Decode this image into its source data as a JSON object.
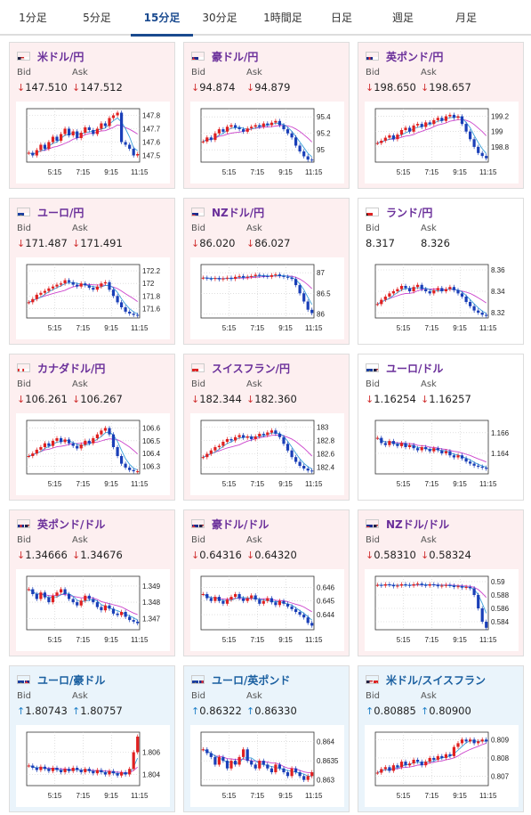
{
  "tabs": [
    {
      "label": "1分足",
      "active": false
    },
    {
      "label": "5分足",
      "active": false
    },
    {
      "label": "15分足",
      "active": true
    },
    {
      "label": "30分足",
      "active": false
    },
    {
      "label": "1時間足",
      "active": false
    },
    {
      "label": "日足",
      "active": false
    },
    {
      "label": "週足",
      "active": false
    },
    {
      "label": "月足",
      "active": false
    }
  ],
  "labels": {
    "bid": "Bid",
    "ask": "Ask"
  },
  "colors": {
    "up": "#1f7fc7",
    "down": "#d03030",
    "candle_up": "#e02020",
    "candle_down": "#1a3fb8",
    "ma_long": "#cc44cc",
    "ma_short": "#3aa0d8"
  },
  "time_labels": [
    "5:15",
    "7:15",
    "9:15",
    "11:15"
  ],
  "pairs": [
    {
      "name": "米ドル/円",
      "flag": "us-jp-flag",
      "bid": "147.510",
      "ask": "147.512",
      "dir": "down",
      "ticks": [
        "147.8",
        "147.7",
        "147.6",
        "147.5"
      ],
      "ylim": [
        147.45,
        147.85
      ],
      "closes": [
        147.52,
        147.5,
        147.54,
        147.58,
        147.55,
        147.6,
        147.64,
        147.61,
        147.66,
        147.7,
        147.65,
        147.68,
        147.63,
        147.67,
        147.71,
        147.69,
        147.66,
        147.7,
        147.74,
        147.72,
        147.78,
        147.8,
        147.82,
        147.6,
        147.58,
        147.55,
        147.5,
        147.51
      ]
    },
    {
      "name": "豪ドル/円",
      "flag": "au-jp-flag",
      "bid": "94.874",
      "ask": "94.879",
      "dir": "down",
      "ticks": [
        "95.4",
        "95.2",
        "95"
      ],
      "ylim": [
        94.85,
        95.5
      ],
      "closes": [
        95.1,
        95.15,
        95.12,
        95.2,
        95.25,
        95.22,
        95.28,
        95.3,
        95.27,
        95.25,
        95.22,
        95.26,
        95.28,
        95.3,
        95.28,
        95.32,
        95.3,
        95.33,
        95.35,
        95.3,
        95.25,
        95.2,
        95.15,
        95.05,
        94.98,
        94.92,
        94.88,
        94.87
      ]
    },
    {
      "name": "英ポンド/円",
      "flag": "gb-jp-flag",
      "bid": "198.650",
      "ask": "198.657",
      "dir": "down",
      "ticks": [
        "199.2",
        "199",
        "198.8"
      ],
      "ylim": [
        198.6,
        199.3
      ],
      "closes": [
        198.85,
        198.88,
        198.92,
        198.95,
        198.9,
        198.96,
        199.02,
        199.05,
        199.0,
        199.08,
        199.1,
        199.06,
        199.12,
        199.1,
        199.15,
        199.18,
        199.14,
        199.2,
        199.22,
        199.18,
        199.2,
        199.1,
        199.0,
        198.9,
        198.8,
        198.72,
        198.68,
        198.65
      ]
    },
    {
      "name": "ユーロ/円",
      "flag": "eu-jp-flag",
      "bid": "171.487",
      "ask": "171.491",
      "dir": "down",
      "ticks": [
        "172.2",
        "172",
        "171.8",
        "171.6"
      ],
      "ylim": [
        171.45,
        172.3
      ],
      "closes": [
        171.7,
        171.75,
        171.82,
        171.85,
        171.88,
        171.92,
        171.95,
        171.98,
        172.0,
        172.05,
        172.02,
        171.98,
        171.95,
        172.0,
        171.97,
        171.93,
        171.9,
        171.95,
        172.0,
        172.02,
        171.9,
        171.8,
        171.7,
        171.62,
        171.55,
        171.52,
        171.5,
        171.49
      ]
    },
    {
      "name": "NZドル/円",
      "flag": "nz-jp-flag",
      "bid": "86.020",
      "ask": "86.027",
      "dir": "down",
      "ticks": [
        "87",
        "86.5",
        "86"
      ],
      "ylim": [
        85.9,
        87.2
      ],
      "closes": [
        86.88,
        86.86,
        86.85,
        86.87,
        86.84,
        86.86,
        86.88,
        86.85,
        86.9,
        86.92,
        86.88,
        86.9,
        86.92,
        86.95,
        86.93,
        86.92,
        86.9,
        86.94,
        86.96,
        86.92,
        86.9,
        86.88,
        86.85,
        86.7,
        86.5,
        86.3,
        86.1,
        86.02
      ]
    },
    {
      "name": "ランド/円",
      "flag": "za-jp-flag",
      "bid": "8.317",
      "ask": "8.326",
      "dir": "none",
      "ticks": [
        "8.36",
        "8.34",
        "8.32"
      ],
      "ylim": [
        8.315,
        8.365
      ],
      "closes": [
        8.328,
        8.332,
        8.335,
        8.338,
        8.34,
        8.342,
        8.345,
        8.343,
        8.34,
        8.344,
        8.346,
        8.342,
        8.34,
        8.338,
        8.341,
        8.343,
        8.34,
        8.342,
        8.344,
        8.341,
        8.338,
        8.335,
        8.33,
        8.326,
        8.322,
        8.32,
        8.318,
        8.317
      ]
    },
    {
      "name": "カナダドル/円",
      "flag": "ca-jp-flag",
      "bid": "106.261",
      "ask": "106.267",
      "dir": "down",
      "ticks": [
        "106.6",
        "106.5",
        "106.4",
        "106.3"
      ],
      "ylim": [
        106.24,
        106.66
      ],
      "closes": [
        106.38,
        106.4,
        106.43,
        106.45,
        106.48,
        106.46,
        106.5,
        106.52,
        106.49,
        106.51,
        106.48,
        106.46,
        106.44,
        106.47,
        106.5,
        106.48,
        106.52,
        106.55,
        106.58,
        106.6,
        106.55,
        106.45,
        106.38,
        106.32,
        106.29,
        106.27,
        106.26,
        106.26
      ]
    },
    {
      "name": "スイスフラン/円",
      "flag": "ch-jp-flag",
      "bid": "182.344",
      "ask": "182.360",
      "dir": "down",
      "ticks": [
        "183",
        "182.8",
        "182.6",
        "182.4"
      ],
      "ylim": [
        182.3,
        183.1
      ],
      "closes": [
        182.55,
        182.6,
        182.65,
        182.7,
        182.72,
        182.78,
        182.82,
        182.8,
        182.85,
        182.88,
        182.84,
        182.86,
        182.82,
        182.86,
        182.9,
        182.88,
        182.92,
        182.95,
        182.9,
        182.85,
        182.75,
        182.65,
        182.55,
        182.48,
        182.42,
        182.38,
        182.35,
        182.34
      ]
    },
    {
      "name": "ユーロ/ドル",
      "flag": "eu-us-flag",
      "bid": "1.16254",
      "ask": "1.16257",
      "dir": "down",
      "ticks": [
        "1.166",
        "1.164"
      ],
      "ylim": [
        1.162,
        1.1672
      ],
      "closes": [
        1.1655,
        1.165,
        1.1648,
        1.1652,
        1.1649,
        1.1647,
        1.165,
        1.1646,
        1.1648,
        1.1645,
        1.1643,
        1.1646,
        1.1644,
        1.1642,
        1.1645,
        1.1643,
        1.164,
        1.1642,
        1.1638,
        1.1636,
        1.1638,
        1.1635,
        1.1632,
        1.163,
        1.1628,
        1.1627,
        1.1626,
        1.1625
      ]
    },
    {
      "name": "英ポンド/ドル",
      "flag": "gb-us-flag",
      "bid": "1.34666",
      "ask": "1.34676",
      "dir": "down",
      "ticks": [
        "1.349",
        "1.348",
        "1.347"
      ],
      "ylim": [
        1.3463,
        1.3496
      ],
      "closes": [
        1.3488,
        1.3485,
        1.3482,
        1.3486,
        1.3483,
        1.348,
        1.3484,
        1.3486,
        1.3488,
        1.3485,
        1.3482,
        1.348,
        1.3478,
        1.3481,
        1.3484,
        1.3482,
        1.348,
        1.3477,
        1.3475,
        1.3478,
        1.3476,
        1.3473,
        1.3472,
        1.3474,
        1.3471,
        1.3469,
        1.3468,
        1.3467
      ]
    },
    {
      "name": "豪ドル/ドル",
      "flag": "au-us-flag",
      "bid": "0.64316",
      "ask": "0.64320",
      "dir": "down",
      "ticks": [
        "0.646",
        "0.645",
        "0.644"
      ],
      "ylim": [
        0.6429,
        0.6468
      ],
      "closes": [
        0.6455,
        0.6452,
        0.645,
        0.6453,
        0.645,
        0.6448,
        0.6451,
        0.6453,
        0.6455,
        0.6452,
        0.645,
        0.6452,
        0.6454,
        0.6451,
        0.6448,
        0.645,
        0.6452,
        0.6449,
        0.6447,
        0.645,
        0.6448,
        0.6446,
        0.6444,
        0.6442,
        0.644,
        0.6438,
        0.6434,
        0.6432
      ]
    },
    {
      "name": "NZドル/ドル",
      "flag": "nz-us-flag",
      "bid": "0.58310",
      "ask": "0.58324",
      "dir": "down",
      "ticks": [
        "0.59",
        "0.588",
        "0.586",
        "0.584"
      ],
      "ylim": [
        0.5828,
        0.5908
      ],
      "closes": [
        0.5895,
        0.5894,
        0.5896,
        0.5895,
        0.5893,
        0.5894,
        0.5896,
        0.5895,
        0.5894,
        0.5896,
        0.5897,
        0.5895,
        0.5894,
        0.5896,
        0.5895,
        0.5893,
        0.5894,
        0.5895,
        0.5894,
        0.5892,
        0.5893,
        0.5891,
        0.5892,
        0.589,
        0.588,
        0.586,
        0.584,
        0.5831
      ]
    },
    {
      "name": "ユーロ/豪ドル",
      "flag": "eu-au-flag",
      "bid": "1.80743",
      "ask": "1.80757",
      "dir": "up",
      "ticks": [
        "1.806",
        "1.804"
      ],
      "ylim": [
        1.803,
        1.8078
      ],
      "closes": [
        1.8048,
        1.8046,
        1.8044,
        1.8047,
        1.8045,
        1.8043,
        1.8046,
        1.8044,
        1.8042,
        1.8045,
        1.8043,
        1.8046,
        1.8044,
        1.8042,
        1.8045,
        1.8043,
        1.8041,
        1.8044,
        1.8042,
        1.804,
        1.8043,
        1.8041,
        1.8039,
        1.8042,
        1.804,
        1.8045,
        1.806,
        1.8074
      ]
    },
    {
      "name": "ユーロ/英ポンド",
      "flag": "eu-gb-flag",
      "bid": "0.86322",
      "ask": "0.86330",
      "dir": "up",
      "ticks": [
        "0.864",
        "0.8635",
        "0.863"
      ],
      "ylim": [
        0.86285,
        0.86425
      ],
      "closes": [
        0.8638,
        0.8637,
        0.8636,
        0.8634,
        0.8636,
        0.8635,
        0.8633,
        0.8635,
        0.8634,
        0.8636,
        0.8638,
        0.8635,
        0.8634,
        0.8633,
        0.8635,
        0.8634,
        0.8633,
        0.8632,
        0.8634,
        0.8633,
        0.8632,
        0.8631,
        0.8633,
        0.8632,
        0.8631,
        0.863,
        0.8631,
        0.8632
      ]
    },
    {
      "name": "米ドル/スイスフラン",
      "flag": "us-ch-flag",
      "bid": "0.80885",
      "ask": "0.80900",
      "dir": "up",
      "ticks": [
        "0.809",
        "0.808",
        "0.807"
      ],
      "ylim": [
        0.8065,
        0.8094
      ],
      "closes": [
        0.8072,
        0.8074,
        0.8075,
        0.8073,
        0.8076,
        0.8075,
        0.8078,
        0.8076,
        0.8077,
        0.8079,
        0.8078,
        0.8076,
        0.8078,
        0.808,
        0.8079,
        0.8081,
        0.808,
        0.8082,
        0.8081,
        0.8086,
        0.8088,
        0.809,
        0.8089,
        0.809,
        0.8088,
        0.8089,
        0.809,
        0.8089
      ]
    }
  ]
}
